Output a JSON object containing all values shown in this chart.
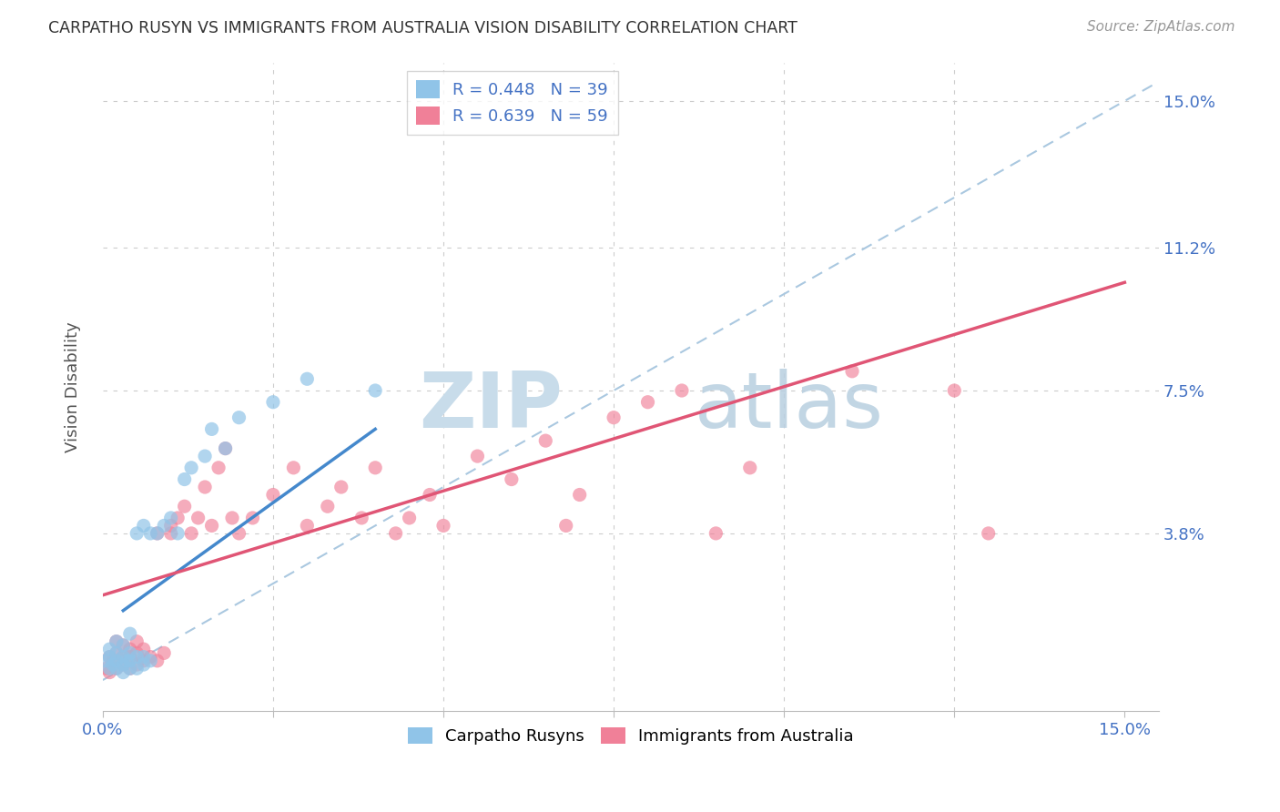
{
  "title": "CARPATHO RUSYN VS IMMIGRANTS FROM AUSTRALIA VISION DISABILITY CORRELATION CHART",
  "source": "Source: ZipAtlas.com",
  "ylabel": "Vision Disability",
  "legend_label1": "Carpatho Rusyns",
  "legend_label2": "Immigrants from Australia",
  "color_blue": "#90c4e8",
  "color_pink": "#f08098",
  "color_blue_line": "#4488cc",
  "color_pink_line": "#e05575",
  "watermark_zip": "ZIP",
  "watermark_atlas": "atlas",
  "xlim": [
    0.0,
    0.155
  ],
  "ylim": [
    -0.008,
    0.16
  ],
  "carpatho_rusyn_x": [
    0.0005,
    0.001,
    0.001,
    0.001,
    0.0015,
    0.002,
    0.002,
    0.002,
    0.002,
    0.003,
    0.003,
    0.003,
    0.003,
    0.0035,
    0.004,
    0.004,
    0.004,
    0.004,
    0.005,
    0.005,
    0.005,
    0.006,
    0.006,
    0.006,
    0.007,
    0.007,
    0.008,
    0.009,
    0.01,
    0.011,
    0.012,
    0.013,
    0.015,
    0.016,
    0.018,
    0.02,
    0.025,
    0.03,
    0.04
  ],
  "carpatho_rusyn_y": [
    0.005,
    0.003,
    0.006,
    0.008,
    0.004,
    0.003,
    0.005,
    0.007,
    0.01,
    0.002,
    0.004,
    0.006,
    0.009,
    0.005,
    0.003,
    0.005,
    0.007,
    0.012,
    0.003,
    0.006,
    0.038,
    0.004,
    0.006,
    0.04,
    0.005,
    0.038,
    0.038,
    0.04,
    0.042,
    0.038,
    0.052,
    0.055,
    0.058,
    0.065,
    0.06,
    0.068,
    0.072,
    0.078,
    0.075
  ],
  "australia_x": [
    0.0005,
    0.001,
    0.001,
    0.0015,
    0.002,
    0.002,
    0.002,
    0.003,
    0.003,
    0.003,
    0.004,
    0.004,
    0.004,
    0.005,
    0.005,
    0.005,
    0.006,
    0.006,
    0.007,
    0.008,
    0.008,
    0.009,
    0.01,
    0.01,
    0.011,
    0.012,
    0.013,
    0.014,
    0.015,
    0.016,
    0.017,
    0.018,
    0.019,
    0.02,
    0.022,
    0.025,
    0.028,
    0.03,
    0.033,
    0.035,
    0.038,
    0.04,
    0.043,
    0.045,
    0.048,
    0.05,
    0.055,
    0.06,
    0.065,
    0.068,
    0.07,
    0.075,
    0.08,
    0.085,
    0.09,
    0.095,
    0.11,
    0.125,
    0.13
  ],
  "australia_y": [
    0.003,
    0.002,
    0.006,
    0.005,
    0.003,
    0.007,
    0.01,
    0.004,
    0.006,
    0.009,
    0.003,
    0.006,
    0.008,
    0.004,
    0.007,
    0.01,
    0.005,
    0.008,
    0.006,
    0.005,
    0.038,
    0.007,
    0.038,
    0.04,
    0.042,
    0.045,
    0.038,
    0.042,
    0.05,
    0.04,
    0.055,
    0.06,
    0.042,
    0.038,
    0.042,
    0.048,
    0.055,
    0.04,
    0.045,
    0.05,
    0.042,
    0.055,
    0.038,
    0.042,
    0.048,
    0.04,
    0.058,
    0.052,
    0.062,
    0.04,
    0.048,
    0.068,
    0.072,
    0.075,
    0.038,
    0.055,
    0.08,
    0.075,
    0.038
  ],
  "blue_line_x": [
    0.003,
    0.04
  ],
  "blue_line_y": [
    0.018,
    0.065
  ],
  "pink_line_x": [
    0.0,
    0.15
  ],
  "pink_line_y": [
    0.022,
    0.103
  ]
}
